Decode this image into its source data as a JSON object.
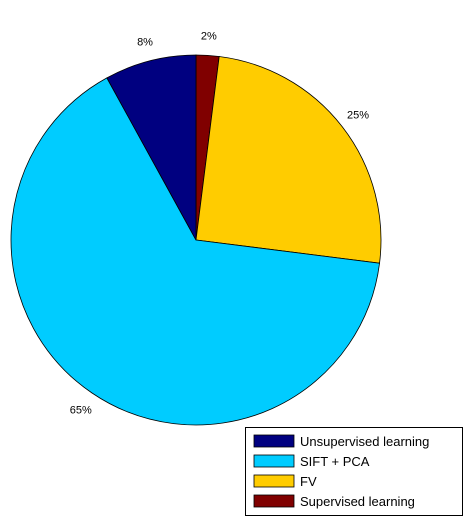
{
  "chart_data": {
    "type": "pie",
    "title": "",
    "start_angle_deg": 90,
    "direction": "clockwise",
    "slices": [
      {
        "label": "Supervised learning",
        "value": 2,
        "display": "2%",
        "color": "#800000"
      },
      {
        "label": "FV",
        "value": 25,
        "display": "25%",
        "color": "#ffcc00"
      },
      {
        "label": "SIFT + PCA",
        "value": 65,
        "display": "65%",
        "color": "#00ccff"
      },
      {
        "label": "Unsupervised learning",
        "value": 8,
        "display": "8%",
        "color": "#000080"
      }
    ],
    "legend": {
      "placement": "bottom-right",
      "entries": [
        "Unsupervised learning",
        "SIFT + PCA",
        "FV",
        "Supervised learning"
      ]
    }
  }
}
